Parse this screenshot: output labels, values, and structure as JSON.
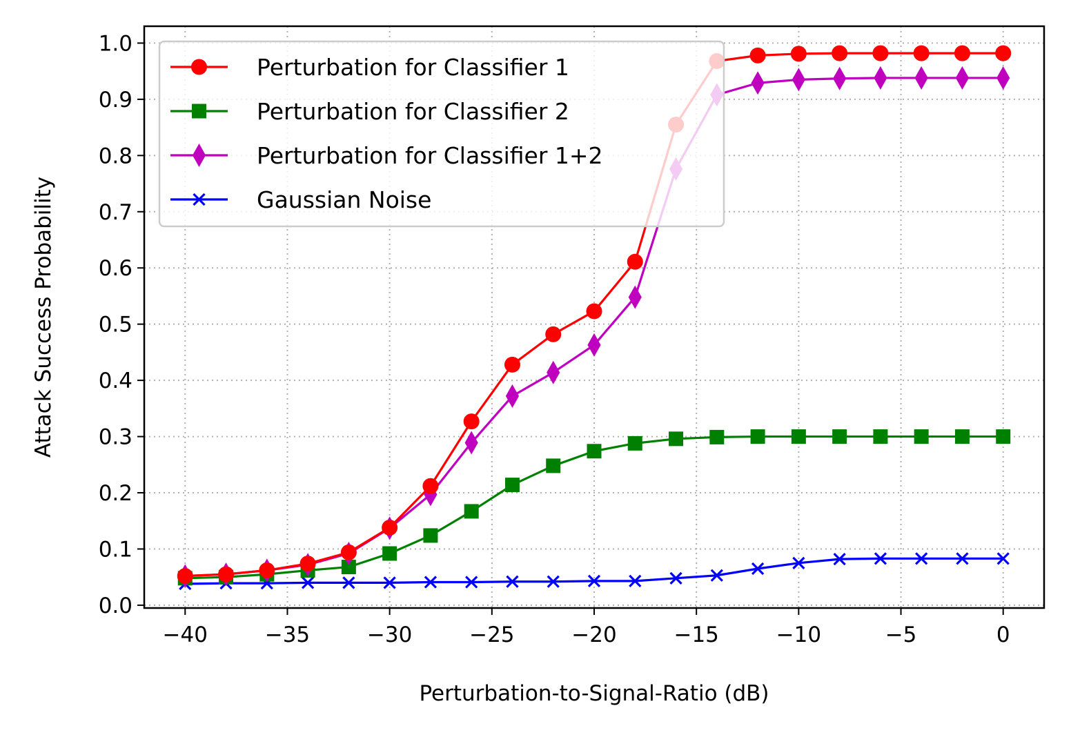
{
  "chart_data": {
    "type": "line",
    "title": "",
    "xlabel": "Perturbation-to-Signal-Ratio (dB)",
    "ylabel": "Attack Success Probability",
    "xlim": [
      -42,
      2
    ],
    "ylim": [
      -0.005,
      1.03
    ],
    "grid": true,
    "legend_position": "top-left",
    "xticks": [
      -40,
      -35,
      -30,
      -25,
      -20,
      -15,
      -10,
      -5,
      0
    ],
    "xtick_labels": [
      "−40",
      "−35",
      "−30",
      "−25",
      "−20",
      "−15",
      "−10",
      "−5",
      "0"
    ],
    "yticks": [
      0.0,
      0.1,
      0.2,
      0.3,
      0.4,
      0.5,
      0.6,
      0.7,
      0.8,
      0.9,
      1.0
    ],
    "ytick_labels": [
      "0.0",
      "0.1",
      "0.2",
      "0.3",
      "0.4",
      "0.5",
      "0.6",
      "0.7",
      "0.8",
      "0.9",
      "1.0"
    ],
    "x": [
      -40,
      -38,
      -36,
      -34,
      -32,
      -30,
      -28,
      -26,
      -24,
      -22,
      -20,
      -18,
      -16,
      -14,
      -12,
      -10,
      -8,
      -6,
      -4,
      -2,
      0
    ],
    "series": [
      {
        "name": "Perturbation for Classifier 1",
        "color": "#ff0000",
        "marker": "circle",
        "values": [
          0.052,
          0.055,
          0.062,
          0.074,
          0.094,
          0.138,
          0.212,
          0.327,
          0.428,
          0.482,
          0.523,
          0.611,
          0.855,
          0.968,
          0.978,
          0.981,
          0.982,
          0.982,
          0.982,
          0.982,
          0.982
        ]
      },
      {
        "name": "Perturbation for Classifier 2",
        "color": "#008000",
        "marker": "square",
        "values": [
          0.048,
          0.05,
          0.055,
          0.062,
          0.068,
          0.092,
          0.124,
          0.167,
          0.214,
          0.248,
          0.274,
          0.288,
          0.296,
          0.299,
          0.3,
          0.3,
          0.3,
          0.3,
          0.3,
          0.3,
          0.3
        ]
      },
      {
        "name": "Perturbation for Classifier 1+2",
        "color": "#bf00bf",
        "marker": "thin-diamond",
        "values": [
          0.052,
          0.055,
          0.062,
          0.072,
          0.092,
          0.137,
          0.197,
          0.289,
          0.372,
          0.414,
          0.463,
          0.548,
          0.776,
          0.908,
          0.929,
          0.935,
          0.937,
          0.938,
          0.938,
          0.938,
          0.938
        ]
      },
      {
        "name": "Gaussian Noise",
        "color": "#0000ff",
        "marker": "x",
        "values": [
          0.038,
          0.039,
          0.039,
          0.04,
          0.04,
          0.04,
          0.041,
          0.041,
          0.042,
          0.042,
          0.043,
          0.043,
          0.048,
          0.053,
          0.065,
          0.075,
          0.082,
          0.083,
          0.083,
          0.083,
          0.083
        ]
      }
    ]
  }
}
